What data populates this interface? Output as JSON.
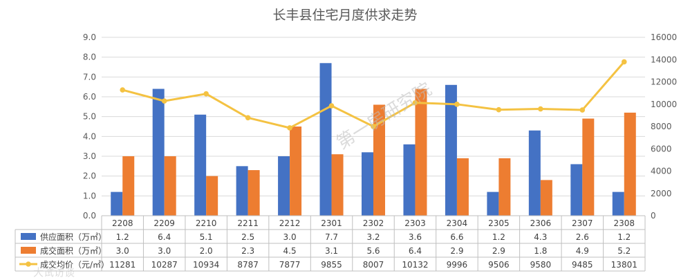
{
  "chart_data": {
    "type": "bar",
    "title": "长丰县住宅月度供求走势",
    "categories": [
      "2208",
      "2209",
      "2210",
      "2211",
      "2212",
      "2301",
      "2302",
      "2303",
      "2304",
      "2305",
      "2306",
      "2307",
      "2308"
    ],
    "series": [
      {
        "name": "供应面积（万㎡）",
        "type": "bar",
        "axis": "left",
        "color": "#4472C4",
        "values": [
          1.2,
          6.4,
          5.1,
          2.5,
          3.0,
          7.7,
          3.2,
          3.6,
          6.6,
          1.2,
          4.3,
          2.6,
          1.2
        ]
      },
      {
        "name": "成交面积（万㎡）",
        "type": "bar",
        "axis": "left",
        "color": "#ED7D31",
        "values": [
          3.0,
          3.0,
          2.0,
          2.3,
          4.5,
          3.1,
          5.6,
          6.4,
          2.9,
          2.9,
          1.8,
          4.9,
          5.2
        ]
      },
      {
        "name": "成交均价（元/㎡）",
        "type": "line",
        "axis": "right",
        "color": "#F4C242",
        "values": [
          11281,
          10287,
          10934,
          8787,
          7877,
          9855,
          8007,
          10132,
          9996,
          9506,
          9580,
          9485,
          13801
        ]
      }
    ],
    "left_ticks": [
      "0.0",
      "1.0",
      "2.0",
      "3.0",
      "4.0",
      "5.0",
      "6.0",
      "7.0",
      "8.0",
      "9.0"
    ],
    "right_ticks": [
      "0",
      "2000",
      "4000",
      "6000",
      "8000",
      "10000",
      "12000",
      "14000",
      "16000"
    ],
    "ylim_left": [
      0,
      9
    ],
    "ylim_right": [
      0,
      16000
    ],
    "data_table": true,
    "grid": true
  },
  "watermark": "第一房研究院",
  "watermark2": "大试访谈"
}
